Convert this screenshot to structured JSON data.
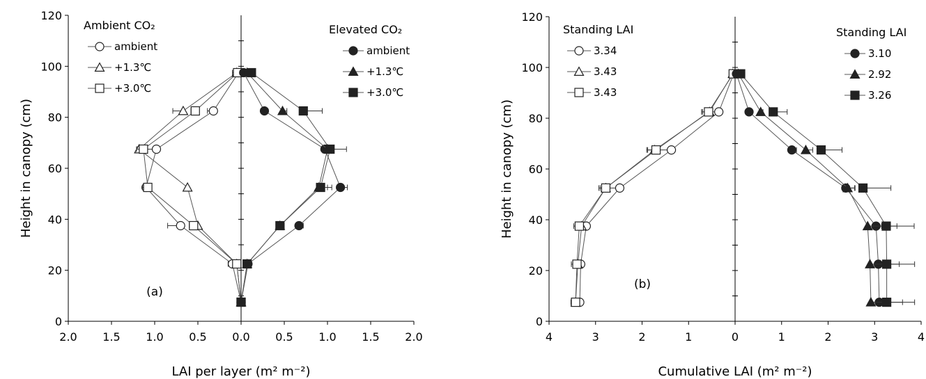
{
  "chart_data": [
    {
      "type": "line",
      "panel_label": "(a)",
      "xlabel": "LAI per layer (m² m⁻²)",
      "ylabel": "Height in canopy (cm)",
      "xlim": [
        -2.0,
        2.0
      ],
      "x_reversed_left": true,
      "ylim": [
        0,
        120
      ],
      "x_tick_labels": [
        "2.0",
        "1.5",
        "1.0",
        "0.5",
        "0.0",
        "0.5",
        "1.0",
        "1.5",
        "2.0"
      ],
      "y_tick_labels": [
        "0",
        "20",
        "40",
        "60",
        "80",
        "100",
        "120"
      ],
      "legend_left_title": "Ambient CO₂",
      "legend_right_title": "Elevated CO₂",
      "series": [
        {
          "name": "ambient",
          "group": "Ambient CO₂",
          "marker": "circle",
          "filled": false,
          "points": [
            [
              -0.03,
              97.5
            ],
            [
              -0.32,
              82.5
            ],
            [
              -0.98,
              67.5
            ],
            [
              -1.1,
              52.5
            ],
            [
              -0.7,
              37.5
            ],
            [
              -0.1,
              22.5
            ],
            [
              0.0,
              7.5
            ]
          ],
          "err": [
            0.05,
            0.07,
            0.22,
            0,
            0.15,
            0.05,
            0
          ]
        },
        {
          "name": "+1.3℃",
          "group": "Ambient CO₂",
          "marker": "triangle",
          "filled": false,
          "points": [
            [
              -0.05,
              97.5
            ],
            [
              -0.67,
              82.5
            ],
            [
              -1.18,
              67.5
            ],
            [
              -0.62,
              52.5
            ],
            [
              -0.5,
              37.5
            ],
            [
              -0.05,
              22.5
            ],
            [
              0.0,
              7.5
            ]
          ],
          "err": [
            0.05,
            0.12,
            0.03,
            0,
            0.08,
            0.03,
            0
          ]
        },
        {
          "name": "+3.0℃",
          "group": "Ambient CO₂",
          "marker": "square",
          "filled": false,
          "points": [
            [
              -0.04,
              97.5
            ],
            [
              -0.53,
              82.5
            ],
            [
              -1.13,
              67.5
            ],
            [
              -1.08,
              52.5
            ],
            [
              -0.55,
              37.5
            ],
            [
              -0.05,
              22.5
            ],
            [
              0.0,
              7.5
            ]
          ],
          "err": [
            0.05,
            0.05,
            0.08,
            0.06,
            0.05,
            0.03,
            0
          ]
        },
        {
          "name": "ambient",
          "group": "Elevated CO₂",
          "marker": "circle",
          "filled": true,
          "points": [
            [
              0.03,
              97.5
            ],
            [
              0.27,
              82.5
            ],
            [
              0.97,
              67.5
            ],
            [
              1.15,
              52.5
            ],
            [
              0.67,
              37.5
            ],
            [
              0.08,
              22.5
            ],
            [
              0.0,
              7.5
            ]
          ],
          "err": [
            0.04,
            0,
            0.06,
            0.08,
            0.05,
            0.03,
            0
          ]
        },
        {
          "name": "+1.3℃",
          "group": "Elevated CO₂",
          "marker": "triangle",
          "filled": true,
          "points": [
            [
              0.07,
              97.5
            ],
            [
              0.48,
              82.5
            ],
            [
              1.0,
              67.5
            ],
            [
              0.9,
              52.5
            ],
            [
              0.45,
              37.5
            ],
            [
              0.07,
              22.5
            ],
            [
              0.0,
              7.5
            ]
          ],
          "err": [
            0.04,
            0.05,
            0.06,
            0.15,
            0.05,
            0.03,
            0
          ]
        },
        {
          "name": "+3.0℃",
          "group": "Elevated CO₂",
          "marker": "square",
          "filled": true,
          "points": [
            [
              0.12,
              97.5
            ],
            [
              0.72,
              82.5
            ],
            [
              1.03,
              67.5
            ],
            [
              0.92,
              52.5
            ],
            [
              0.45,
              37.5
            ],
            [
              0.07,
              22.5
            ],
            [
              0.0,
              7.5
            ]
          ],
          "err": [
            0.04,
            0.22,
            0.19,
            0.08,
            0.05,
            0.03,
            0
          ]
        }
      ]
    },
    {
      "type": "line",
      "panel_label": "(b)",
      "xlabel": "Cumulative LAI (m² m⁻²)",
      "ylabel": "Height in canopy (cm)",
      "xlim": [
        -4,
        4
      ],
      "x_reversed_left": true,
      "ylim": [
        0,
        120
      ],
      "x_tick_labels": [
        "4",
        "3",
        "2",
        "1",
        "0",
        "1",
        "2",
        "3",
        "4"
      ],
      "y_tick_labels": [
        "0",
        "20",
        "40",
        "60",
        "80",
        "100",
        "120"
      ],
      "legend_left_title": "Standing LAI",
      "legend_right_title": "Standing LAI",
      "series": [
        {
          "name": "3.34",
          "group": "left",
          "marker": "circle",
          "filled": false,
          "points": [
            [
              -0.03,
              97.5
            ],
            [
              -0.35,
              82.5
            ],
            [
              -1.37,
              67.5
            ],
            [
              -2.48,
              52.5
            ],
            [
              -3.2,
              37.5
            ],
            [
              -3.32,
              22.5
            ],
            [
              -3.34,
              7.5
            ]
          ],
          "err": [
            0.05,
            0.22,
            0.42,
            0.28,
            0.18,
            0.15,
            0
          ]
        },
        {
          "name": "3.43",
          "group": "left",
          "marker": "triangle",
          "filled": false,
          "points": [
            [
              -0.05,
              97.5
            ],
            [
              -0.55,
              82.5
            ],
            [
              -1.73,
              67.5
            ],
            [
              -2.78,
              52.5
            ],
            [
              -3.3,
              37.5
            ],
            [
              -3.38,
              22.5
            ],
            [
              -3.43,
              7.5
            ]
          ],
          "err": [
            0.05,
            0.15,
            0.15,
            0.12,
            0.08,
            0.08,
            0
          ]
        },
        {
          "name": "3.43",
          "group": "left",
          "marker": "square",
          "filled": false,
          "points": [
            [
              -0.04,
              97.5
            ],
            [
              -0.57,
              82.5
            ],
            [
              -1.7,
              67.5
            ],
            [
              -2.78,
              52.5
            ],
            [
              -3.35,
              37.5
            ],
            [
              -3.4,
              22.5
            ],
            [
              -3.43,
              7.5
            ]
          ],
          "err": [
            0.05,
            0.15,
            0.2,
            0.15,
            0.12,
            0.12,
            0.1
          ]
        },
        {
          "name": "3.10",
          "group": "right",
          "marker": "circle",
          "filled": true,
          "points": [
            [
              0.03,
              97.5
            ],
            [
              0.3,
              82.5
            ],
            [
              1.22,
              67.5
            ],
            [
              2.38,
              52.5
            ],
            [
              3.03,
              37.5
            ],
            [
              3.08,
              22.5
            ],
            [
              3.1,
              7.5
            ]
          ],
          "err": [
            0.04,
            0,
            0.1,
            0.2,
            0.45,
            0.45,
            0.5
          ]
        },
        {
          "name": "2.92",
          "group": "right",
          "marker": "triangle",
          "filled": true,
          "points": [
            [
              0.07,
              97.5
            ],
            [
              0.55,
              82.5
            ],
            [
              1.52,
              67.5
            ],
            [
              2.42,
              52.5
            ],
            [
              2.85,
              37.5
            ],
            [
              2.9,
              22.5
            ],
            [
              2.92,
              7.5
            ]
          ],
          "err": [
            0.04,
            0.05,
            0.15,
            0.15,
            0.3,
            0.3,
            0.3
          ]
        },
        {
          "name": "3.26",
          "group": "right",
          "marker": "square",
          "filled": true,
          "points": [
            [
              0.12,
              97.5
            ],
            [
              0.82,
              82.5
            ],
            [
              1.85,
              67.5
            ],
            [
              2.75,
              52.5
            ],
            [
              3.25,
              37.5
            ],
            [
              3.26,
              22.5
            ],
            [
              3.26,
              7.5
            ]
          ],
          "err": [
            0.04,
            0.3,
            0.45,
            0.6,
            0.6,
            0.6,
            0.6
          ]
        }
      ]
    }
  ]
}
